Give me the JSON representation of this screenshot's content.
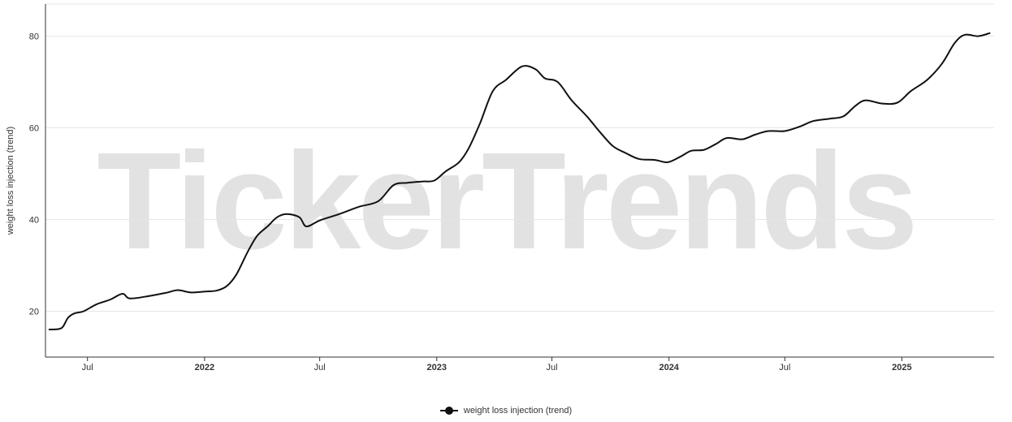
{
  "watermark": "TickerTrends",
  "chart_data": {
    "type": "line",
    "ylabel": "weight loss injection  (trend)",
    "xlabel": "",
    "ylim": [
      10,
      87
    ],
    "yticks": [
      20,
      40,
      60,
      80
    ],
    "x_axis_range": [
      "2021-04-26",
      "2025-05-26"
    ],
    "xticks": [
      {
        "label": "Jul",
        "date": "2021-07-01",
        "bold": false
      },
      {
        "label": "2022",
        "date": "2022-01-01",
        "bold": true
      },
      {
        "label": "Jul",
        "date": "2022-07-01",
        "bold": false
      },
      {
        "label": "2023",
        "date": "2023-01-01",
        "bold": true
      },
      {
        "label": "Jul",
        "date": "2023-07-01",
        "bold": false
      },
      {
        "label": "2024",
        "date": "2024-01-01",
        "bold": true
      },
      {
        "label": "Jul",
        "date": "2024-07-01",
        "bold": false
      },
      {
        "label": "2025",
        "date": "2025-01-01",
        "bold": true
      }
    ],
    "grid": "horizontal",
    "legend_position": "bottom-center",
    "series": [
      {
        "name": "weight loss injection  (trend)",
        "color": "#111111",
        "points": [
          [
            "2021-05-01",
            16.0
          ],
          [
            "2021-05-21",
            16.3
          ],
          [
            "2021-05-31",
            18.5
          ],
          [
            "2021-06-10",
            19.5
          ],
          [
            "2021-06-25",
            20.0
          ],
          [
            "2021-07-15",
            21.5
          ],
          [
            "2021-08-05",
            22.5
          ],
          [
            "2021-08-25",
            23.8
          ],
          [
            "2021-09-05",
            22.8
          ],
          [
            "2021-10-01",
            23.2
          ],
          [
            "2021-11-01",
            24.0
          ],
          [
            "2021-11-20",
            24.6
          ],
          [
            "2021-12-10",
            24.1
          ],
          [
            "2022-01-01",
            24.3
          ],
          [
            "2022-01-20",
            24.5
          ],
          [
            "2022-02-05",
            25.5
          ],
          [
            "2022-02-20",
            28.0
          ],
          [
            "2022-03-10",
            33.0
          ],
          [
            "2022-03-25",
            36.5
          ],
          [
            "2022-04-10",
            38.5
          ],
          [
            "2022-04-25",
            40.5
          ],
          [
            "2022-05-10",
            41.2
          ],
          [
            "2022-05-30",
            40.5
          ],
          [
            "2022-06-10",
            38.5
          ],
          [
            "2022-07-01",
            39.8
          ],
          [
            "2022-08-01",
            41.2
          ],
          [
            "2022-09-01",
            42.8
          ],
          [
            "2022-10-01",
            44.0
          ],
          [
            "2022-10-25",
            47.5
          ],
          [
            "2022-11-15",
            48.0
          ],
          [
            "2022-12-10",
            48.3
          ],
          [
            "2022-12-28",
            48.5
          ],
          [
            "2023-01-15",
            50.5
          ],
          [
            "2023-02-05",
            52.5
          ],
          [
            "2023-02-20",
            55.5
          ],
          [
            "2023-03-10",
            61.0
          ],
          [
            "2023-03-30",
            68.0
          ],
          [
            "2023-04-20",
            70.5
          ],
          [
            "2023-05-15",
            73.4
          ],
          [
            "2023-06-05",
            72.8
          ],
          [
            "2023-06-20",
            70.8
          ],
          [
            "2023-07-10",
            70.0
          ],
          [
            "2023-08-01",
            66.0
          ],
          [
            "2023-08-25",
            62.5
          ],
          [
            "2023-09-15",
            59.0
          ],
          [
            "2023-10-05",
            56.0
          ],
          [
            "2023-10-25",
            54.5
          ],
          [
            "2023-11-15",
            53.2
          ],
          [
            "2023-12-10",
            53.0
          ],
          [
            "2023-12-30",
            52.5
          ],
          [
            "2024-01-20",
            53.8
          ],
          [
            "2024-02-05",
            55.0
          ],
          [
            "2024-02-25",
            55.2
          ],
          [
            "2024-03-15",
            56.5
          ],
          [
            "2024-04-01",
            57.8
          ],
          [
            "2024-04-25",
            57.5
          ],
          [
            "2024-05-15",
            58.5
          ],
          [
            "2024-06-05",
            59.3
          ],
          [
            "2024-07-01",
            59.3
          ],
          [
            "2024-07-25",
            60.3
          ],
          [
            "2024-08-15",
            61.5
          ],
          [
            "2024-09-10",
            62.0
          ],
          [
            "2024-10-01",
            62.5
          ],
          [
            "2024-10-20",
            64.8
          ],
          [
            "2024-11-05",
            66.0
          ],
          [
            "2024-12-01",
            65.3
          ],
          [
            "2024-12-25",
            65.5
          ],
          [
            "2025-01-15",
            68.0
          ],
          [
            "2025-02-10",
            70.5
          ],
          [
            "2025-03-05",
            74.0
          ],
          [
            "2025-03-25",
            78.5
          ],
          [
            "2025-04-10",
            80.3
          ],
          [
            "2025-05-01",
            80.0
          ],
          [
            "2025-05-20",
            80.7
          ]
        ]
      }
    ]
  }
}
